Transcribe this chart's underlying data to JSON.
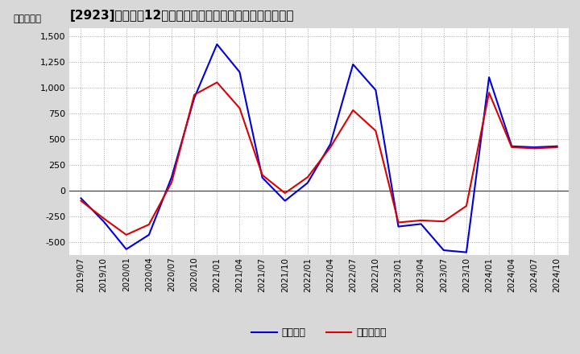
{
  "title": "[2923]　利益の12か月移動合計の対前年同期増減額の推移",
  "ylabel": "（百万円）",
  "ylim": [
    -625,
    1575
  ],
  "yticks": [
    -500,
    -250,
    0,
    250,
    500,
    750,
    1000,
    1250,
    1500
  ],
  "background_color": "#d8d8d8",
  "plot_bg_color": "#ffffff",
  "grid_color": "#aaaaaa",
  "legend_entries": [
    "経常利益",
    "当期純利益"
  ],
  "line_colors": [
    "#0000dd",
    "#dd0000"
  ],
  "dates": [
    "2019/07",
    "2019/10",
    "2020/01",
    "2020/04",
    "2020/07",
    "2020/10",
    "2021/01",
    "2021/04",
    "2021/07",
    "2021/10",
    "2022/01",
    "2022/04",
    "2022/07",
    "2022/10",
    "2023/01",
    "2023/04",
    "2023/07",
    "2023/10",
    "2024/01",
    "2024/04",
    "2024/07",
    "2024/10"
  ],
  "series1": [
    -75,
    -300,
    -570,
    -430,
    130,
    900,
    1420,
    1150,
    125,
    -100,
    75,
    450,
    1225,
    975,
    -350,
    -325,
    -580,
    -600,
    1100,
    430,
    420,
    430
  ],
  "series2": [
    -100,
    -270,
    -430,
    -330,
    80,
    930,
    1050,
    800,
    150,
    -25,
    130,
    420,
    780,
    580,
    -310,
    -290,
    -300,
    -150,
    950,
    420,
    410,
    420
  ],
  "title_fontsize": 11,
  "tick_fontsize": 8,
  "legend_fontsize": 9
}
